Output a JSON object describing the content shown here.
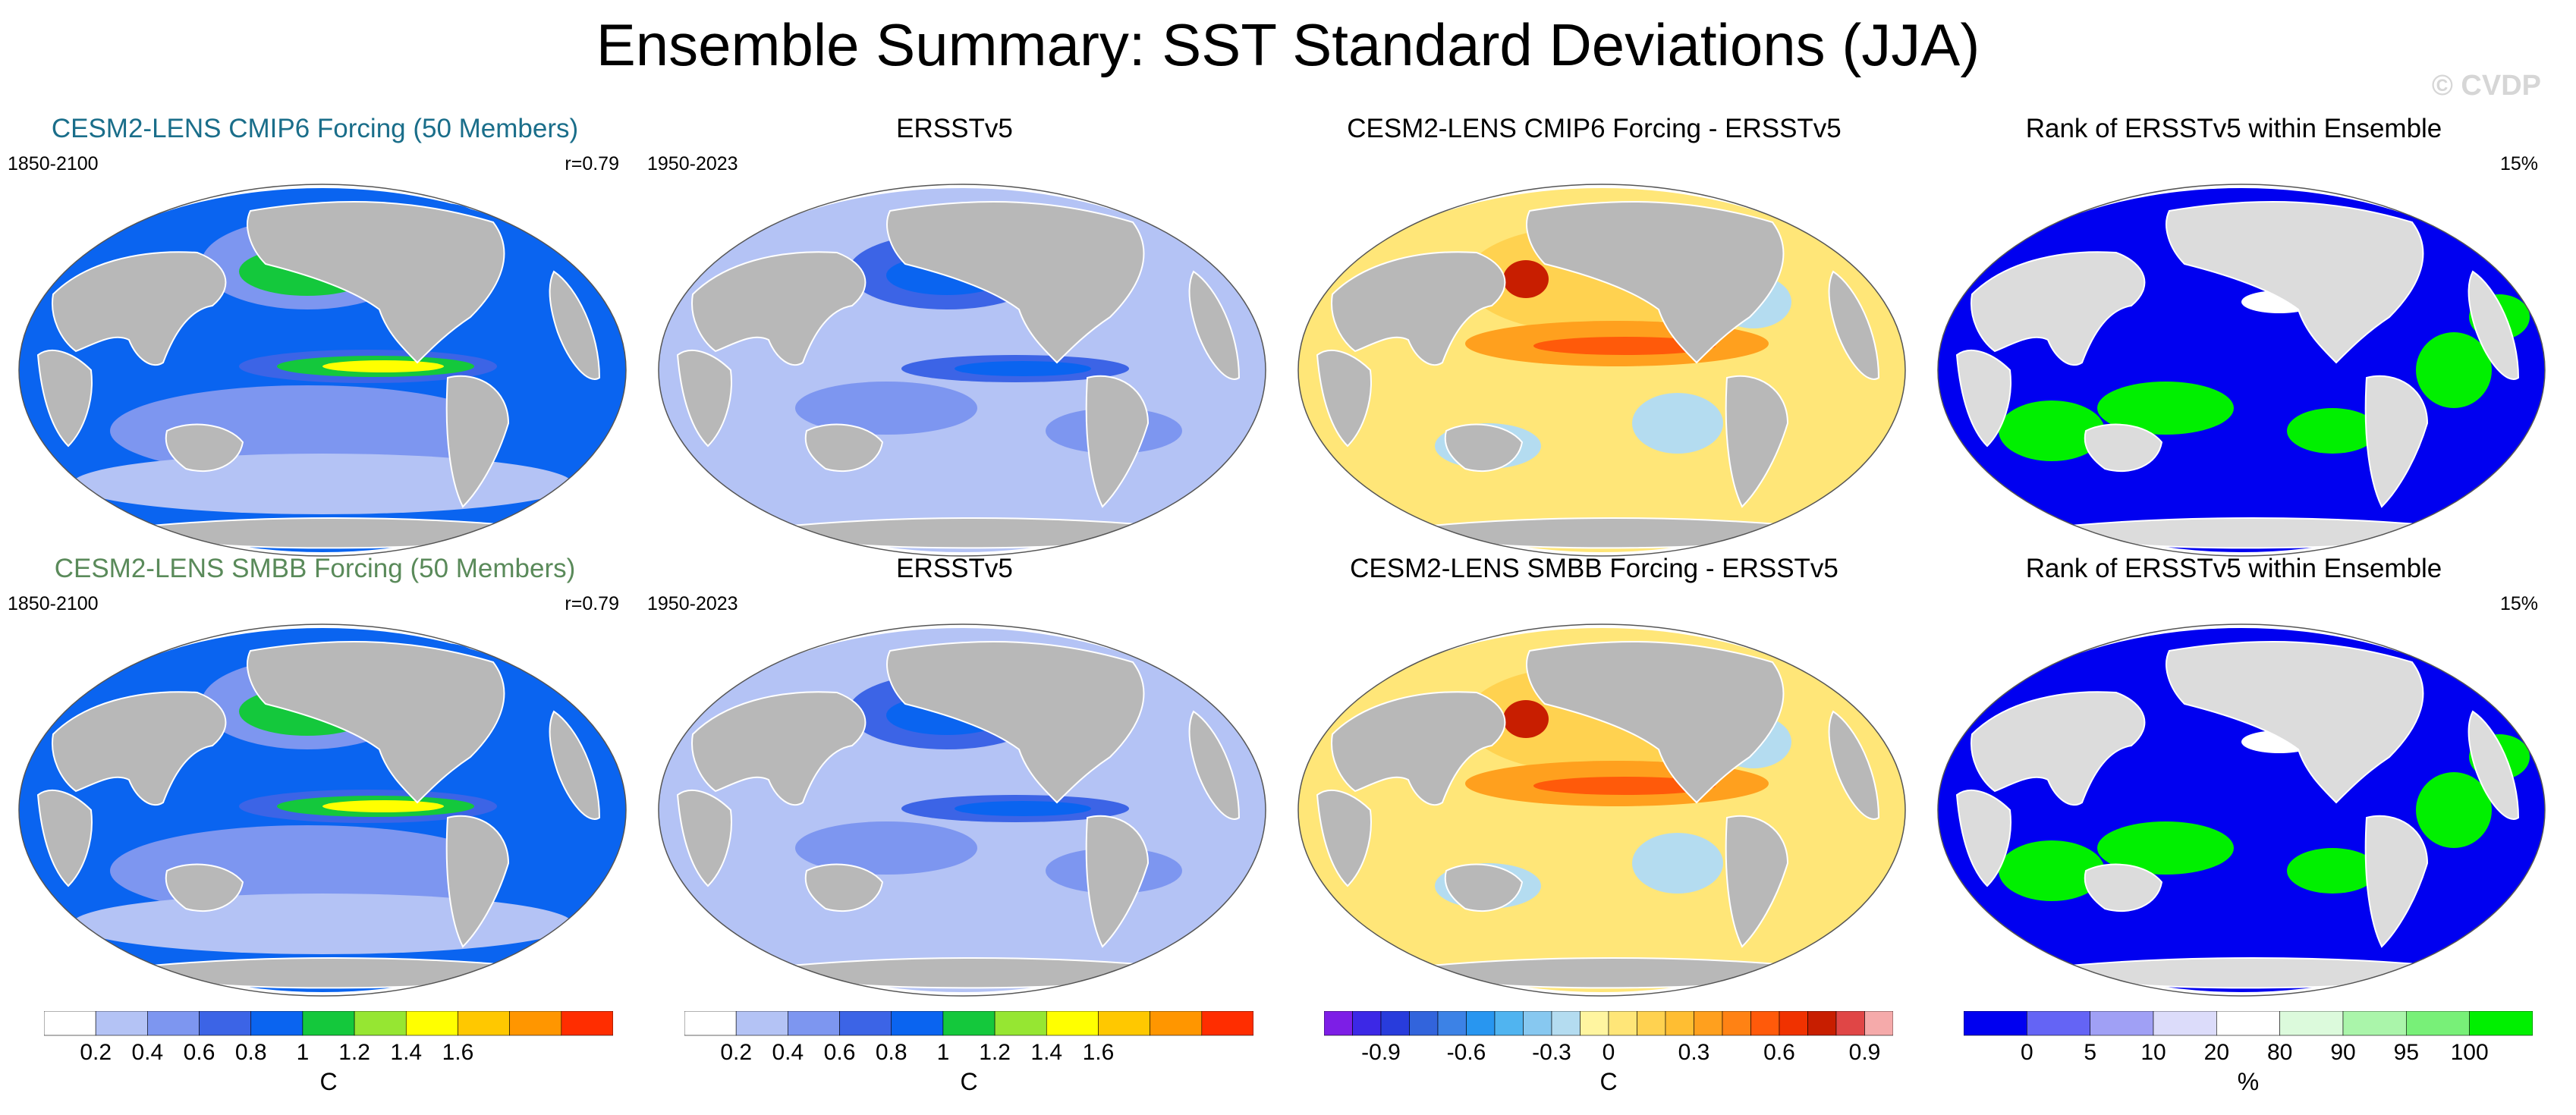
{
  "title": "Ensemble Summary: SST Standard Deviations (JJA)",
  "watermark": "© CVDP",
  "colors": {
    "land": "#b8b8b8",
    "land_light": "#dcdcdc",
    "ocean_outline": "#555555",
    "sd_scale": [
      "#ffffff",
      "#b4c3f5",
      "#7d96f0",
      "#3c64e6",
      "#0a64f0",
      "#14c83c",
      "#96e632",
      "#ffff00",
      "#ffc800",
      "#ff9600",
      "#ff2d00"
    ],
    "diff_scale": [
      "#7d1ee6",
      "#3c28e6",
      "#283cdc",
      "#3264dc",
      "#3c82e6",
      "#2896f0",
      "#50b4f0",
      "#87c8f0",
      "#b4dcf0",
      "#fff5a0",
      "#ffe678",
      "#ffd250",
      "#ffbe32",
      "#ffa01e",
      "#ff8214",
      "#ff5a0a",
      "#f03200",
      "#c81e00",
      "#e04646",
      "#f5aaaa"
    ],
    "rank_scale": [
      "#0000f0",
      "#6464f5",
      "#a0a0f5",
      "#dcdcfa",
      "#ffffff",
      "#dcfadc",
      "#aaf5aa",
      "#78f078",
      "#00f000"
    ]
  },
  "panels": [
    {
      "title": "CESM2-LENS CMIP6 Forcing (50 Members)",
      "title_color": "#1a6e8a",
      "left_label": "1850-2100",
      "right_label": "r=0.79"
    },
    {
      "title": "ERSSTv5",
      "title_color": "#000000",
      "left_label": "1950-2023",
      "right_label": ""
    },
    {
      "title": "CESM2-LENS CMIP6 Forcing - ERSSTv5",
      "title_color": "#000000",
      "left_label": "",
      "right_label": ""
    },
    {
      "title": "Rank of ERSSTv5 within Ensemble",
      "title_color": "#000000",
      "left_label": "",
      "right_label": "15%"
    },
    {
      "title": "CESM2-LENS SMBB Forcing (50 Members)",
      "title_color": "#5a8a5a",
      "left_label": "1850-2100",
      "right_label": "r=0.79"
    },
    {
      "title": "ERSSTv5",
      "title_color": "#000000",
      "left_label": "1950-2023",
      "right_label": ""
    },
    {
      "title": "CESM2-LENS SMBB Forcing - ERSSTv5",
      "title_color": "#000000",
      "left_label": "",
      "right_label": ""
    },
    {
      "title": "Rank of ERSSTv5 within Ensemble",
      "title_color": "#000000",
      "left_label": "",
      "right_label": "15%"
    }
  ],
  "chart_data": [
    {
      "type": "heatmap",
      "title": "CESM2-LENS CMIP6 Forcing (50 Members)",
      "period": "1850-2100",
      "pattern_correlation": 0.79,
      "colorbar": "sd",
      "units": "C"
    },
    {
      "type": "heatmap",
      "title": "ERSSTv5",
      "period": "1950-2023",
      "colorbar": "sd",
      "units": "C"
    },
    {
      "type": "heatmap",
      "title": "CESM2-LENS CMIP6 Forcing - ERSSTv5",
      "colorbar": "diff",
      "units": "C"
    },
    {
      "type": "heatmap",
      "title": "Rank of ERSSTv5 within Ensemble",
      "area_percent": 15,
      "colorbar": "rank",
      "units": "%"
    },
    {
      "type": "heatmap",
      "title": "CESM2-LENS SMBB Forcing (50 Members)",
      "period": "1850-2100",
      "pattern_correlation": 0.79,
      "colorbar": "sd",
      "units": "C"
    },
    {
      "type": "heatmap",
      "title": "ERSSTv5",
      "period": "1950-2023",
      "colorbar": "sd",
      "units": "C"
    },
    {
      "type": "heatmap",
      "title": "CESM2-LENS SMBB Forcing - ERSSTv5",
      "colorbar": "diff",
      "units": "C"
    },
    {
      "type": "heatmap",
      "title": "Rank of ERSSTv5 within Ensemble",
      "area_percent": 15,
      "colorbar": "rank",
      "units": "%"
    }
  ],
  "colorbars": {
    "sd": {
      "ticks": [
        "0.2",
        "0.4",
        "0.6",
        "0.8",
        "1",
        "1.2",
        "1.4",
        "1.6"
      ],
      "label": "C",
      "levels": [
        0.2,
        0.4,
        0.6,
        0.8,
        1.0,
        1.2,
        1.4,
        1.6
      ]
    },
    "diff": {
      "ticks": [
        "-0.9",
        "-0.6",
        "-0.3",
        "0",
        "0.3",
        "0.6",
        "0.9"
      ],
      "label": "C",
      "levels": [
        -0.9,
        -0.6,
        -0.3,
        0,
        0.3,
        0.6,
        0.9
      ]
    },
    "rank": {
      "ticks": [
        "0",
        "5",
        "10",
        "20",
        "80",
        "90",
        "95",
        "100"
      ],
      "label": "%",
      "levels": [
        0,
        5,
        10,
        20,
        80,
        90,
        95,
        100
      ]
    }
  }
}
